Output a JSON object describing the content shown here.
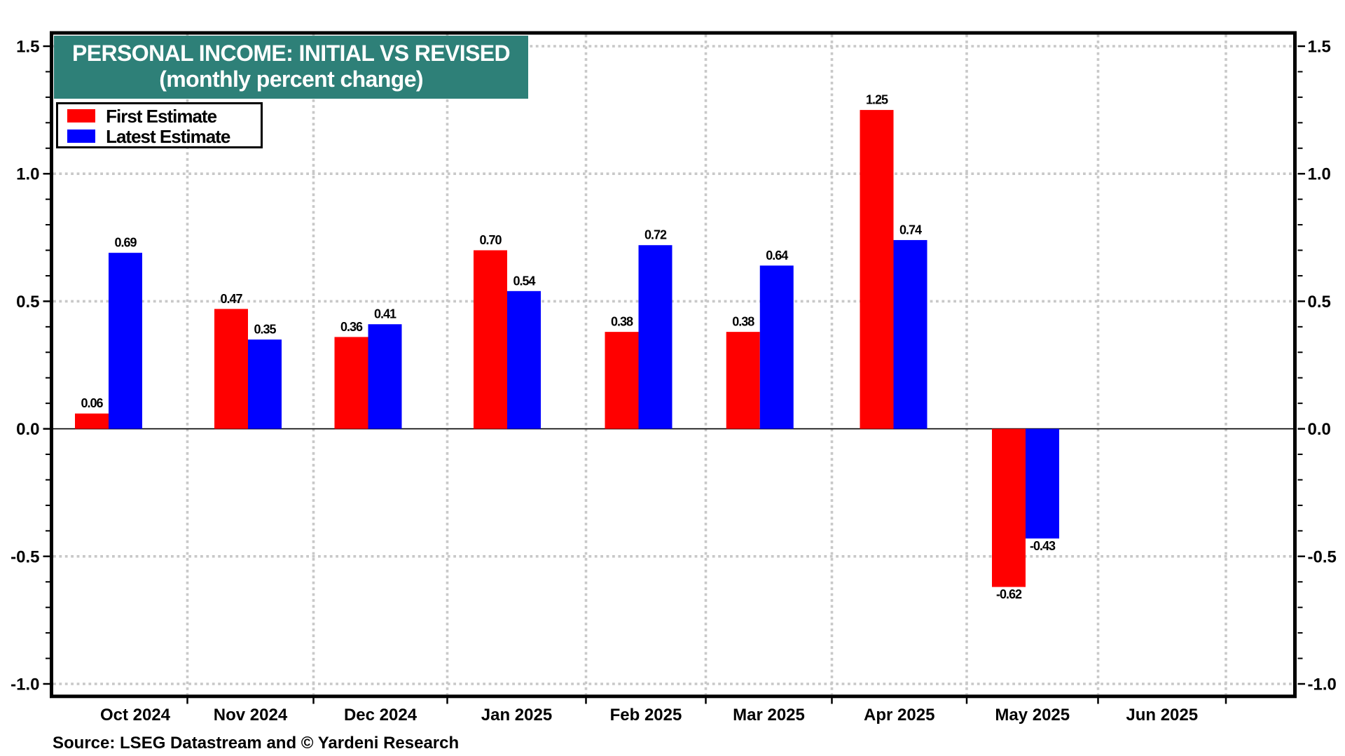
{
  "chart_data": {
    "type": "bar",
    "title": "PERSONAL INCOME: INITIAL VS REVISED",
    "subtitle": "(monthly percent change)",
    "categories": [
      "Oct 2024",
      "Nov 2024",
      "Dec 2024",
      "Jan 2025",
      "Feb 2025",
      "Mar 2025",
      "Apr 2025",
      "May 2025",
      "Jun 2025"
    ],
    "series": [
      {
        "name": "First Estimate",
        "color": "#ff0000",
        "values": [
          0.06,
          0.47,
          0.36,
          0.7,
          0.38,
          0.38,
          1.25,
          -0.62,
          null
        ]
      },
      {
        "name": "Latest Estimate",
        "color": "#0000ff",
        "values": [
          0.69,
          0.35,
          0.41,
          0.54,
          0.72,
          0.64,
          0.74,
          -0.43,
          null
        ]
      }
    ],
    "bar_value_labels": {
      "first": [
        "0.06",
        "0.47",
        "0.36",
        "0.70",
        "0.38",
        "0.38",
        "1.25",
        "-0.62",
        ""
      ],
      "latest": [
        "0.69",
        "0.35",
        "0.41",
        "0.54",
        "0.72",
        "0.64",
        "0.74",
        "-0.43",
        ""
      ]
    },
    "xlabel": "",
    "ylabel": "",
    "ylim": [
      -1.045,
      1.545
    ],
    "y_major_ticks": [
      1.5,
      1.0,
      0.5,
      0.0,
      -0.5,
      -1.0
    ],
    "y_major_tick_labels": [
      "1.5",
      "1.0",
      "0.5",
      "0.0",
      "-0.5",
      "-1.0"
    ],
    "y_minor_tick_step": 0.1,
    "y_axis_labels_on_both_sides": true,
    "grid": "dotted",
    "zero_line": "solid",
    "legend_position": "top-left",
    "source": "Source: LSEG Datastream and © Yardeni Research"
  },
  "colors": {
    "title_bg": "#2E8078",
    "title_text": "#ffffff",
    "first_estimate": "#ff0000",
    "latest_estimate": "#0000ff",
    "grid": "#c8c8c8",
    "frame": "#000000",
    "text": "#000000",
    "background": "#ffffff"
  }
}
